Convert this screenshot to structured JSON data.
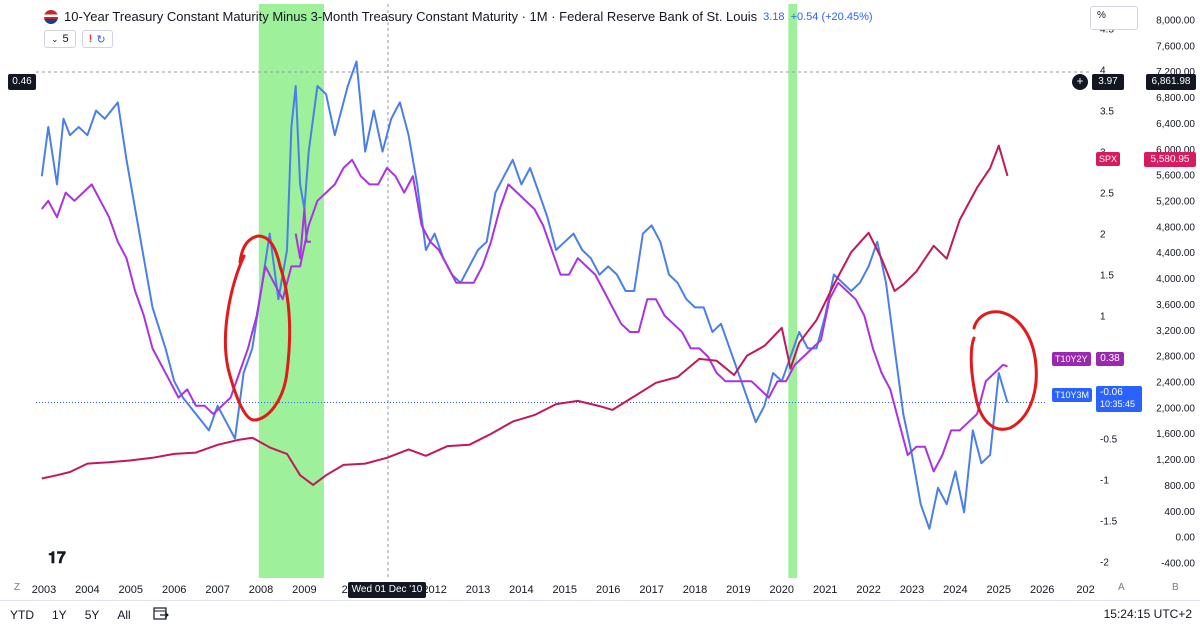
{
  "header": {
    "title": "10-Year Treasury Constant Maturity Minus 3-Month Treasury Constant Maturity · 1M · Federal Reserve Bank of St. Louis",
    "value": "3.18",
    "change": "+0.54 (+20.45%)",
    "interval_chip": "5",
    "alert_glyph": "!",
    "cycle_glyph": "↻"
  },
  "pct_label": "%",
  "crosshair": {
    "left_value": "0.46",
    "right_value": "3.97",
    "right_price": "6,861.98",
    "date": "Wed 01 Dec '10"
  },
  "labels": {
    "spx": {
      "name": "SPX",
      "value": "5,580.95"
    },
    "t10y2y": {
      "name": "T10Y2Y",
      "value": "0.38"
    },
    "t10y3m": {
      "name": "T10Y3M",
      "value": "-0.06",
      "timer": "10:35:45"
    }
  },
  "bottom": {
    "ranges": [
      "YTD",
      "1Y",
      "5Y",
      "All"
    ],
    "time": "15:24:15 UTC+2",
    "axis_mode_left": "Z",
    "axis_mode_a": "A",
    "axis_mode_b": "B"
  },
  "colors": {
    "t10y3m": "#4a7fea",
    "t10y2y": "#a933e0",
    "spx": "#c2185b",
    "recession": "#9ef09b",
    "annotation": "#e01b1b",
    "spx_label": "#d81b60",
    "t10y2y_label": "#9c27b0",
    "t10y3m_label": "#2962ff"
  },
  "chart_data": {
    "type": "line",
    "x_ticks": [
      "2003",
      "2004",
      "2005",
      "2006",
      "2007",
      "2008",
      "2009",
      "20",
      "2011",
      "2012",
      "2013",
      "2014",
      "2015",
      "2016",
      "2017",
      "2018",
      "2019",
      "2020",
      "2021",
      "2022",
      "2023",
      "2024",
      "2025",
      "2026",
      "202"
    ],
    "y_left": {
      "unit": "%",
      "ticks": [
        "4.5",
        "4",
        "3.5",
        "3",
        "2.5",
        "2",
        "1.5",
        "1",
        "0.5",
        "0",
        "-0.5",
        "-1",
        "-1.5",
        "-2"
      ],
      "range": [
        -2.2,
        4.8
      ]
    },
    "y_right": {
      "ticks": [
        "8,000.00",
        "7,600.00",
        "7,200.00",
        "6,800.00",
        "6,400.00",
        "6,000.00",
        "5,600.00",
        "5,200.00",
        "4,800.00",
        "4,400.00",
        "4,000.00",
        "3,600.00",
        "3,200.00",
        "2,800.00",
        "2,400.00",
        "2,000.00",
        "1,600.00",
        "1,200.00",
        "800.00",
        "400.00",
        "0.00",
        "-400.00"
      ],
      "range": [
        -640,
        8240
      ]
    },
    "recession_shading": [
      [
        2007.95,
        2009.45
      ],
      [
        2020.15,
        2020.35
      ]
    ],
    "series": [
      {
        "name": "T10Y3M",
        "axis": "left",
        "x": [
          2002.95,
          2003.1,
          2003.3,
          2003.45,
          2003.6,
          2003.8,
          2004.0,
          2004.2,
          2004.4,
          2004.7,
          2004.9,
          2005.2,
          2005.5,
          2005.8,
          2006.0,
          2006.2,
          2006.5,
          2006.8,
          2007.0,
          2007.2,
          2007.4,
          2007.6,
          2007.8,
          2008.0,
          2008.2,
          2008.4,
          2008.6,
          2008.7,
          2008.8,
          2008.9,
          2009.0,
          2009.1,
          2009.3,
          2009.5,
          2009.7,
          2009.9,
          2010.0,
          2010.2,
          2010.4,
          2010.6,
          2010.8,
          2011.0,
          2011.2,
          2011.4,
          2011.6,
          2011.8,
          2012.0,
          2012.2,
          2012.4,
          2012.6,
          2012.8,
          2013.0,
          2013.2,
          2013.4,
          2013.6,
          2013.8,
          2014.0,
          2014.2,
          2014.4,
          2014.6,
          2014.8,
          2015.0,
          2015.2,
          2015.4,
          2015.6,
          2015.8,
          2016.0,
          2016.2,
          2016.4,
          2016.6,
          2016.8,
          2017.0,
          2017.2,
          2017.4,
          2017.6,
          2017.8,
          2018.0,
          2018.2,
          2018.4,
          2018.6,
          2018.8,
          2019.0,
          2019.2,
          2019.4,
          2019.6,
          2019.8,
          2020.0,
          2020.2,
          2020.4,
          2020.6,
          2020.8,
          2021.0,
          2021.2,
          2021.4,
          2021.6,
          2021.8,
          2022.0,
          2022.2,
          2022.4,
          2022.6,
          2022.8,
          2023.0,
          2023.2,
          2023.4,
          2023.6,
          2023.8,
          2024.0,
          2024.2,
          2024.4,
          2024.6,
          2024.8,
          2025.0,
          2025.2
        ],
        "y": [
          2.7,
          3.3,
          2.6,
          3.4,
          3.2,
          3.3,
          3.2,
          3.5,
          3.4,
          3.6,
          2.9,
          2.0,
          1.1,
          0.6,
          0.2,
          0.0,
          -0.2,
          -0.4,
          -0.1,
          -0.3,
          -0.5,
          0.3,
          0.6,
          1.3,
          2.0,
          1.2,
          1.8,
          3.3,
          3.8,
          2.6,
          2.3,
          3.0,
          3.8,
          3.7,
          3.2,
          3.6,
          3.8,
          4.1,
          3.0,
          3.5,
          3.0,
          3.4,
          3.6,
          3.2,
          2.6,
          1.8,
          2.0,
          1.7,
          1.5,
          1.4,
          1.6,
          1.8,
          1.9,
          2.5,
          2.7,
          2.9,
          2.6,
          2.8,
          2.5,
          2.2,
          1.8,
          1.9,
          2.0,
          1.8,
          1.7,
          1.5,
          1.6,
          1.5,
          1.3,
          1.3,
          2.0,
          2.1,
          1.9,
          1.5,
          1.4,
          1.2,
          1.1,
          1.1,
          0.8,
          0.9,
          0.6,
          0.3,
          0.0,
          -0.3,
          -0.1,
          0.3,
          0.2,
          0.5,
          0.8,
          0.6,
          0.6,
          1.0,
          1.5,
          1.4,
          1.3,
          1.4,
          1.6,
          1.9,
          1.4,
          0.6,
          -0.2,
          -0.7,
          -1.3,
          -1.6,
          -1.1,
          -1.3,
          -0.9,
          -1.4,
          -0.4,
          -0.8,
          -0.7,
          0.3,
          -0.06
        ]
      },
      {
        "name": "T10Y2Y",
        "axis": "left",
        "x": [
          2002.95,
          2003.1,
          2003.3,
          2003.5,
          2003.7,
          2003.9,
          2004.1,
          2004.3,
          2004.5,
          2004.7,
          2004.9,
          2005.1,
          2005.3,
          2005.5,
          2005.7,
          2005.9,
          2006.1,
          2006.3,
          2006.5,
          2006.7,
          2006.9,
          2007.1,
          2007.3,
          2007.5,
          2007.7,
          2007.9,
          2008.1,
          2008.3,
          2008.5,
          2008.7,
          2008.9,
          2009.1,
          2009.3,
          2009.5,
          2009.7,
          2009.9,
          2010.1,
          2010.3,
          2010.5,
          2010.7,
          2010.9,
          2011.1,
          2011.3,
          2011.5,
          2011.7,
          2011.9,
          2012.1,
          2012.3,
          2012.5,
          2012.7,
          2012.9,
          2013.1,
          2013.3,
          2013.5,
          2013.7,
          2013.9,
          2014.1,
          2014.3,
          2014.5,
          2014.7,
          2014.9,
          2015.1,
          2015.3,
          2015.5,
          2015.7,
          2015.9,
          2016.1,
          2016.3,
          2016.5,
          2016.7,
          2016.9,
          2017.1,
          2017.3,
          2017.5,
          2017.7,
          2017.9,
          2018.1,
          2018.3,
          2018.5,
          2018.7,
          2018.9,
          2019.1,
          2019.3,
          2019.5,
          2019.7,
          2019.9,
          2020.1,
          2020.3,
          2020.5,
          2020.7,
          2020.9,
          2021.1,
          2021.3,
          2021.5,
          2021.7,
          2021.9,
          2022.1,
          2022.3,
          2022.5,
          2022.7,
          2022.9,
          2023.1,
          2023.3,
          2023.5,
          2023.7,
          2023.9,
          2024.1,
          2024.3,
          2024.5,
          2024.7,
          2024.9,
          2025.1,
          2025.2
        ],
        "y": [
          2.3,
          2.4,
          2.2,
          2.5,
          2.4,
          2.5,
          2.6,
          2.4,
          2.2,
          1.9,
          1.7,
          1.3,
          1.0,
          0.6,
          0.4,
          0.2,
          0.0,
          0.1,
          -0.1,
          -0.1,
          -0.2,
          -0.1,
          0.0,
          0.3,
          0.6,
          1.0,
          1.6,
          1.4,
          1.2,
          1.6,
          1.6,
          2.1,
          2.4,
          2.5,
          2.6,
          2.8,
          2.9,
          2.7,
          2.6,
          2.6,
          2.8,
          2.7,
          2.5,
          2.7,
          2.1,
          1.9,
          1.8,
          1.6,
          1.4,
          1.4,
          1.4,
          1.6,
          1.9,
          2.3,
          2.6,
          2.5,
          2.4,
          2.3,
          2.1,
          1.8,
          1.5,
          1.5,
          1.7,
          1.6,
          1.5,
          1.3,
          1.1,
          0.9,
          0.8,
          0.8,
          1.2,
          1.2,
          1.0,
          0.9,
          0.8,
          0.6,
          0.6,
          0.5,
          0.3,
          0.2,
          0.2,
          0.2,
          0.2,
          0.1,
          0.0,
          0.2,
          0.2,
          0.4,
          0.5,
          0.6,
          0.7,
          1.2,
          1.4,
          1.3,
          1.2,
          1.0,
          0.6,
          0.3,
          0.1,
          -0.3,
          -0.7,
          -0.6,
          -0.6,
          -0.9,
          -0.7,
          -0.4,
          -0.4,
          -0.3,
          -0.2,
          0.2,
          0.3,
          0.4,
          0.38
        ]
      },
      {
        "name": "SPX",
        "axis": "right",
        "x": [
          2002.95,
          2003.3,
          2003.6,
          2004.0,
          2004.5,
          2005.0,
          2005.5,
          2006.0,
          2006.5,
          2007.0,
          2007.5,
          2007.8,
          2008.2,
          2008.6,
          2008.9,
          2009.2,
          2009.5,
          2009.9,
          2010.4,
          2010.9,
          2011.4,
          2011.8,
          2012.3,
          2012.8,
          2013.3,
          2013.8,
          2014.3,
          2014.8,
          2015.3,
          2015.8,
          2016.1,
          2016.6,
          2017.1,
          2017.6,
          2018.1,
          2018.5,
          2018.9,
          2019.2,
          2019.6,
          2020.0,
          2020.2,
          2020.4,
          2020.8,
          2021.2,
          2021.6,
          2022.0,
          2022.3,
          2022.6,
          2022.8,
          2023.1,
          2023.5,
          2023.8,
          2024.1,
          2024.5,
          2024.8,
          2025.0,
          2025.2
        ],
        "y": [
          900,
          950,
          1000,
          1130,
          1150,
          1180,
          1220,
          1280,
          1300,
          1420,
          1500,
          1530,
          1380,
          1280,
          950,
          800,
          950,
          1110,
          1130,
          1220,
          1350,
          1250,
          1400,
          1420,
          1590,
          1780,
          1880,
          2050,
          2100,
          2020,
          1960,
          2170,
          2380,
          2470,
          2750,
          2720,
          2500,
          2800,
          2950,
          3230,
          2600,
          3000,
          3350,
          3900,
          4400,
          4700,
          4300,
          3800,
          3900,
          4100,
          4500,
          4300,
          4900,
          5400,
          5700,
          6050,
          5580
        ]
      },
      {
        "name": "T10Y2Y-overlay",
        "axis": "left",
        "x": [
          2008.8,
          2008.9,
          2009.0,
          2009.05,
          2009.15
        ],
        "y": [
          2.0,
          1.7,
          2.3,
          1.9,
          1.9
        ]
      }
    ]
  }
}
